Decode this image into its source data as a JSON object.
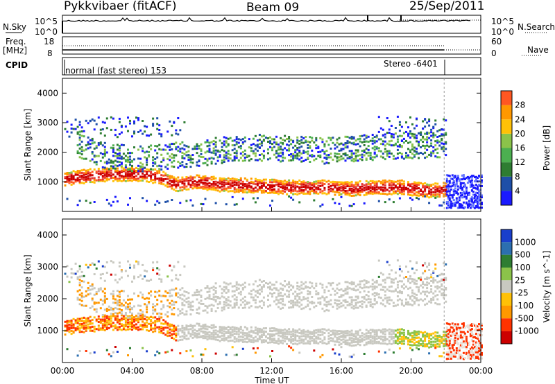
{
  "header": {
    "station": "Pykkvibaer (fitACF)",
    "beam": "Beam 09",
    "date": "25/Sep/2011"
  },
  "summary_panels": {
    "nsky_label": "N.Sky",
    "nsky_ticks": [
      "10^5",
      "10^0"
    ],
    "nsearch_label": "N.Search",
    "nsearch_ticks": [
      "10^5",
      "10^0"
    ],
    "freq_label_line1": "Freq.",
    "freq_label_line2": "[MHz]",
    "freq_ticks": [
      "18",
      "8"
    ],
    "nave_label": "Nave",
    "nave_ticks": [
      "60",
      "0"
    ],
    "cpid_label": "CPID",
    "cpid_mode": "normal (fast stereo) 153",
    "cpid_mode2": "Stereo -6401"
  },
  "chart_data": [
    {
      "type": "heatmap",
      "title": "",
      "xlabel": "",
      "ylabel": "Slant Range [km]",
      "xlim": [
        0,
        24
      ],
      "ylim": [
        0,
        4500
      ],
      "yticks": [
        1000,
        2000,
        3000,
        4000
      ],
      "colorbar": {
        "label": "Power [dB]",
        "ticks": [
          4,
          8,
          12,
          16,
          20,
          24,
          28
        ],
        "tick_labels": [
          "4",
          "8",
          "12",
          "16",
          "20",
          "24",
          "28"
        ],
        "colors": [
          "#1a1aff",
          "#1e4fa8",
          "#2e7d32",
          "#4caf50",
          "#8bc34a",
          "#ffc107",
          "#ff9800",
          "#ff5722",
          "#e53935",
          "#cc0000"
        ]
      },
      "bands": [
        {
          "name": "main-echo",
          "x": [
            0.2,
            1.0,
            1.8,
            3.0,
            4.5,
            5.5,
            6.5,
            7.5,
            9,
            11,
            13,
            15,
            16.5,
            18,
            19.5,
            21,
            22.5
          ],
          "y": [
            1100,
            1150,
            1200,
            1250,
            1250,
            1150,
            900,
            1000,
            900,
            850,
            800,
            800,
            750,
            800,
            800,
            700,
            750
          ],
          "power": 26
        },
        {
          "name": "upper-echo",
          "x": [
            1.0,
            2.5,
            4.5,
            6.0,
            7.5,
            9,
            11,
            13,
            15,
            16.5,
            18,
            19.5,
            21,
            22.5
          ],
          "y": [
            2200,
            1800,
            1700,
            1800,
            1900,
            2000,
            2100,
            2050,
            2000,
            2050,
            2100,
            2150,
            2200,
            2150
          ],
          "power": 10
        }
      ]
    },
    {
      "type": "heatmap",
      "title": "",
      "xlabel": "Time UT",
      "ylabel": "Slant Range [km]",
      "xlim": [
        0,
        24
      ],
      "ylim": [
        0,
        4500
      ],
      "yticks": [
        1000,
        2000,
        3000,
        4000
      ],
      "xticks": [
        0,
        4,
        8,
        12,
        16,
        20,
        24
      ],
      "xtick_labels": [
        "00:00",
        "04:00",
        "08:00",
        "12:00",
        "16:00",
        "20:00",
        "00:00"
      ],
      "colorbar": {
        "label": "Velocity [m s^-1]",
        "tick_labels": [
          "1000",
          "500",
          "100",
          "25",
          "-25",
          "-100",
          "-500",
          "-1000"
        ],
        "colors": [
          "#1a3fcc",
          "#2c6fb0",
          "#2e7d32",
          "#8bc34a",
          "#c8c8c0",
          "#ffc107",
          "#ff9800",
          "#ff3300",
          "#cc0000"
        ]
      }
    }
  ],
  "colors": {
    "power_low": "#1a1aff",
    "power_high": "#cc0000",
    "ground_scatter": "#c8c8c0"
  }
}
